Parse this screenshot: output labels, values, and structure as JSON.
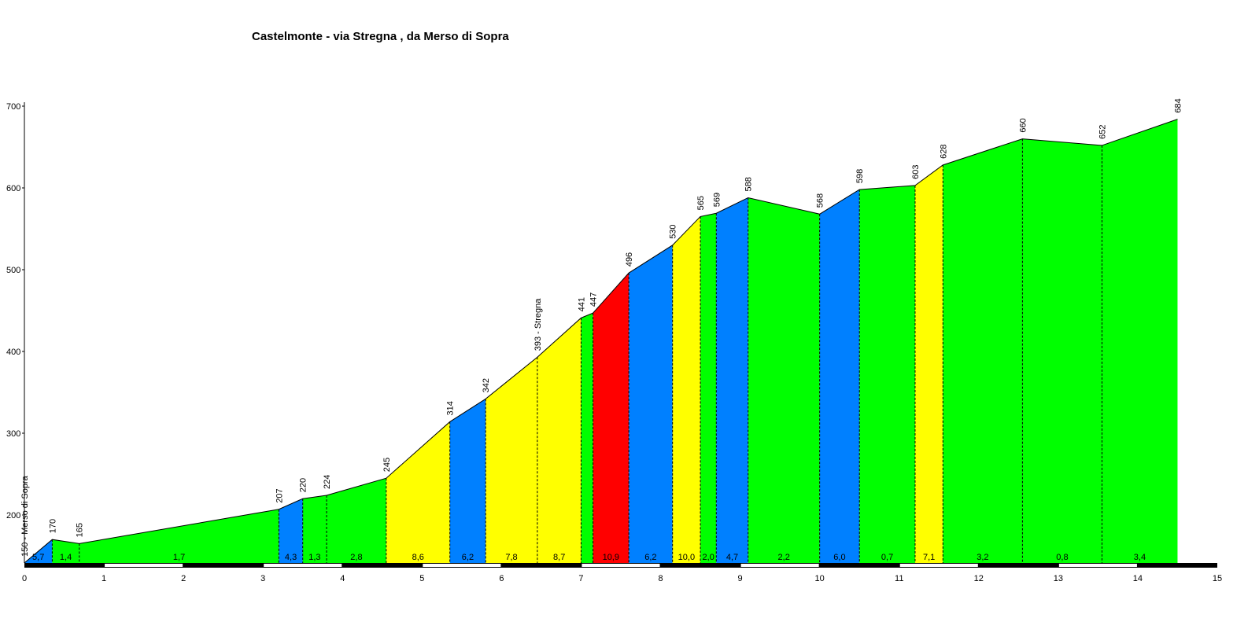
{
  "chart_data": {
    "type": "area",
    "title": "Castelmonte - via Stregna , da Merso di Sopra",
    "xlabel": "",
    "ylabel": "",
    "xlim": [
      0,
      15
    ],
    "ylim": [
      150,
      700
    ],
    "x_ticks": [
      "0",
      "1",
      "2",
      "3",
      "4",
      "5",
      "6",
      "7",
      "8",
      "9",
      "10",
      "11",
      "12",
      "13",
      "14",
      "15"
    ],
    "y_ticks": [
      "200",
      "300",
      "400",
      "500",
      "600",
      "700"
    ],
    "points": [
      {
        "x": 0.0,
        "y": 150,
        "label": "150 - Merso di Sopra"
      },
      {
        "x": 0.35,
        "y": 170,
        "label": "170"
      },
      {
        "x": 0.69,
        "y": 165,
        "label": "165"
      },
      {
        "x": 3.2,
        "y": 207,
        "label": "207"
      },
      {
        "x": 3.5,
        "y": 220,
        "label": "220"
      },
      {
        "x": 3.8,
        "y": 224,
        "label": "224"
      },
      {
        "x": 4.55,
        "y": 245,
        "label": "245"
      },
      {
        "x": 5.35,
        "y": 314,
        "label": "314"
      },
      {
        "x": 5.8,
        "y": 342,
        "label": "342"
      },
      {
        "x": 6.45,
        "y": 393,
        "label": "393 - Stregna"
      },
      {
        "x": 7.0,
        "y": 441,
        "label": "441"
      },
      {
        "x": 7.15,
        "y": 447,
        "label": "447"
      },
      {
        "x": 7.6,
        "y": 496,
        "label": "496"
      },
      {
        "x": 8.15,
        "y": 530,
        "label": "530"
      },
      {
        "x": 8.5,
        "y": 565,
        "label": "565"
      },
      {
        "x": 8.7,
        "y": 569,
        "label": "569"
      },
      {
        "x": 9.1,
        "y": 588,
        "label": "588"
      },
      {
        "x": 10.0,
        "y": 568,
        "label": "568"
      },
      {
        "x": 10.5,
        "y": 598,
        "label": "598"
      },
      {
        "x": 11.2,
        "y": 603,
        "label": "603"
      },
      {
        "x": 11.55,
        "y": 628,
        "label": "628"
      },
      {
        "x": 12.55,
        "y": 660,
        "label": "660"
      },
      {
        "x": 13.55,
        "y": 652,
        "label": "652"
      },
      {
        "x": 14.5,
        "y": 684,
        "label": "684"
      }
    ],
    "segments": [
      {
        "gradient": "5,7",
        "color": "#0080ff"
      },
      {
        "gradient": "1,4",
        "color": "#00ff00"
      },
      {
        "gradient": "1,7",
        "color": "#00ff00"
      },
      {
        "gradient": "4,3",
        "color": "#0080ff"
      },
      {
        "gradient": "1,3",
        "color": "#00ff00"
      },
      {
        "gradient": "2,8",
        "color": "#00ff00"
      },
      {
        "gradient": "8,6",
        "color": "#ffff00"
      },
      {
        "gradient": "6,2",
        "color": "#0080ff"
      },
      {
        "gradient": "7,8",
        "color": "#ffff00"
      },
      {
        "gradient": "8,7",
        "color": "#ffff00"
      },
      {
        "gradient": "",
        "color": "#00ff00"
      },
      {
        "gradient": "10,9",
        "color": "#ff0000"
      },
      {
        "gradient": "6,2",
        "color": "#0080ff"
      },
      {
        "gradient": "10,0",
        "color": "#ffff00"
      },
      {
        "gradient": "2,0",
        "color": "#00ff00"
      },
      {
        "gradient": "4,7",
        "color": "#0080ff"
      },
      {
        "gradient": "2,2",
        "color": "#00ff00"
      },
      {
        "gradient": "6,0",
        "color": "#0080ff"
      },
      {
        "gradient": "0,7",
        "color": "#00ff00"
      },
      {
        "gradient": "7,1",
        "color": "#ffff00"
      },
      {
        "gradient": "3,2",
        "color": "#00ff00"
      },
      {
        "gradient": "0,8",
        "color": "#00ff00"
      },
      {
        "gradient": "3,4",
        "color": "#00ff00"
      }
    ],
    "colors": {
      "blue": "#0080ff",
      "green": "#00ff00",
      "yellow": "#ffff00",
      "red": "#ff0000",
      "axis": "#000000"
    },
    "grid": false
  }
}
